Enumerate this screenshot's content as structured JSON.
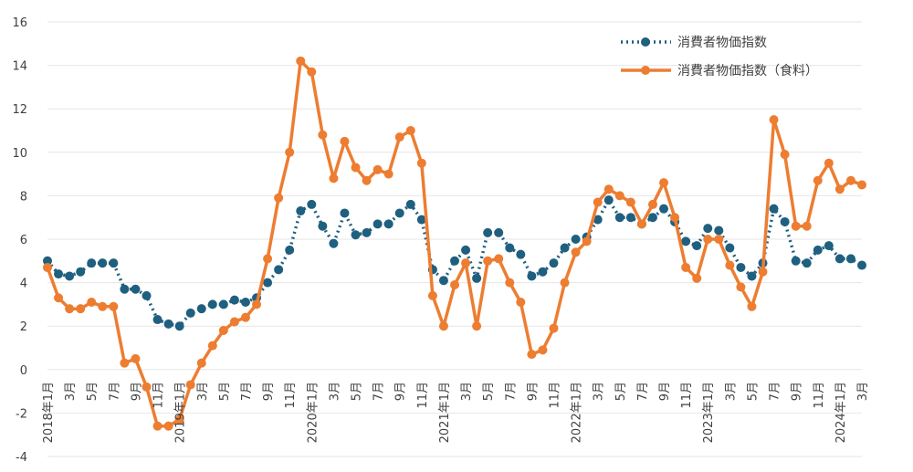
{
  "chart_data": {
    "type": "line",
    "title": "",
    "xlabel": "",
    "ylabel": "",
    "ylim": [
      -4,
      16
    ],
    "yticks": [
      "16",
      "14",
      "12",
      "10",
      "8",
      "6",
      "4",
      "2",
      "0",
      "-2",
      "-4"
    ],
    "grid": "horizontal",
    "legend_position": "top-right",
    "x": [
      "2018年1月",
      "2018年2月",
      "3月",
      "2018年4月",
      "5月",
      "2018年6月",
      "7月",
      "2018年8月",
      "9月",
      "2018年10月",
      "11月",
      "2018年12月",
      "2019年1月",
      "2019年2月",
      "3月",
      "2019年4月",
      "5月",
      "2019年6月",
      "7月",
      "2019年8月",
      "9月",
      "2019年10月",
      "11月",
      "2019年12月",
      "2020年1月",
      "2020年2月",
      "3月",
      "2020年4月",
      "5月",
      "2020年6月",
      "7月",
      "2020年8月",
      "9月",
      "2020年10月",
      "11月",
      "2020年12月",
      "2021年1月",
      "2021年2月",
      "3月",
      "2021年4月",
      "5月",
      "2021年6月",
      "7月",
      "2021年8月",
      "9月",
      "2021年10月",
      "11月",
      "2021年12月",
      "2022年1月",
      "2022年2月",
      "3月",
      "2022年4月",
      "5月",
      "2022年6月",
      "7月",
      "2022年8月",
      "9月",
      "2022年10月",
      "11月",
      "2022年12月",
      "2023年1月",
      "2023年2月",
      "3月",
      "2023年4月",
      "5月",
      "2023年6月",
      "7月",
      "2023年8月",
      "9月",
      "2023年10月",
      "11月",
      "2023年12月",
      "2024年1月",
      "2024年2月",
      "3月"
    ],
    "tick_labels": [
      {
        "i": 0,
        "label": "2018年1月"
      },
      {
        "i": 2,
        "label": "3月"
      },
      {
        "i": 4,
        "label": "5月"
      },
      {
        "i": 6,
        "label": "7月"
      },
      {
        "i": 8,
        "label": "9月"
      },
      {
        "i": 10,
        "label": "11月"
      },
      {
        "i": 12,
        "label": "2019年1月"
      },
      {
        "i": 14,
        "label": "3月"
      },
      {
        "i": 16,
        "label": "5月"
      },
      {
        "i": 18,
        "label": "7月"
      },
      {
        "i": 20,
        "label": "9月"
      },
      {
        "i": 22,
        "label": "11月"
      },
      {
        "i": 24,
        "label": "2020年1月"
      },
      {
        "i": 26,
        "label": "3月"
      },
      {
        "i": 28,
        "label": "5月"
      },
      {
        "i": 30,
        "label": "7月"
      },
      {
        "i": 32,
        "label": "9月"
      },
      {
        "i": 34,
        "label": "11月"
      },
      {
        "i": 36,
        "label": "2021年1月"
      },
      {
        "i": 38,
        "label": "3月"
      },
      {
        "i": 40,
        "label": "5月"
      },
      {
        "i": 42,
        "label": "7月"
      },
      {
        "i": 44,
        "label": "9月"
      },
      {
        "i": 46,
        "label": "11月"
      },
      {
        "i": 48,
        "label": "2022年1月"
      },
      {
        "i": 50,
        "label": "3月"
      },
      {
        "i": 52,
        "label": "5月"
      },
      {
        "i": 54,
        "label": "7月"
      },
      {
        "i": 56,
        "label": "9月"
      },
      {
        "i": 58,
        "label": "11月"
      },
      {
        "i": 60,
        "label": "2023年1月"
      },
      {
        "i": 62,
        "label": "3月"
      },
      {
        "i": 64,
        "label": "5月"
      },
      {
        "i": 66,
        "label": "7月"
      },
      {
        "i": 68,
        "label": "9月"
      },
      {
        "i": 70,
        "label": "11月"
      },
      {
        "i": 72,
        "label": "2024年1月"
      },
      {
        "i": 74,
        "label": "3月"
      }
    ],
    "series": [
      {
        "name": "消費者物価指数",
        "color": "#1f5f7f",
        "style": "dotted",
        "values": [
          5.0,
          4.4,
          4.3,
          4.5,
          4.9,
          4.9,
          4.9,
          3.7,
          3.7,
          3.4,
          2.3,
          2.1,
          2.0,
          2.6,
          2.8,
          3.0,
          3.0,
          3.2,
          3.1,
          3.3,
          4.0,
          4.6,
          5.5,
          7.3,
          7.6,
          6.6,
          5.8,
          7.2,
          6.2,
          6.3,
          6.7,
          6.7,
          7.2,
          7.6,
          6.9,
          4.6,
          4.1,
          5.0,
          5.5,
          4.2,
          6.3,
          6.3,
          5.6,
          5.3,
          4.3,
          4.5,
          4.9,
          5.6,
          6.0,
          6.1,
          6.9,
          7.8,
          7.0,
          7.0,
          6.7,
          7.0,
          7.4,
          6.8,
          5.9,
          5.7,
          6.5,
          6.4,
          5.6,
          4.7,
          4.3,
          4.9,
          7.4,
          6.8,
          5.0,
          4.9,
          5.5,
          5.7,
          5.1,
          5.1,
          4.8
        ]
      },
      {
        "name": "消費者物価指数（食料）",
        "color": "#ed7d31",
        "style": "solid",
        "values": [
          4.7,
          3.3,
          2.8,
          2.8,
          3.1,
          2.9,
          2.9,
          0.3,
          0.5,
          -0.8,
          -2.6,
          -2.6,
          -2.3,
          -0.7,
          0.3,
          1.1,
          1.8,
          2.2,
          2.4,
          3.0,
          5.1,
          7.9,
          10.0,
          14.2,
          13.7,
          10.8,
          8.8,
          10.5,
          9.3,
          8.7,
          9.2,
          9.0,
          10.7,
          11.0,
          9.5,
          3.4,
          2.0,
          3.9,
          4.9,
          2.0,
          5.0,
          5.1,
          4.0,
          3.1,
          0.7,
          0.9,
          1.9,
          4.0,
          5.4,
          5.9,
          7.7,
          8.3,
          8.0,
          7.7,
          6.7,
          7.6,
          8.6,
          7.0,
          4.7,
          4.2,
          6.0,
          6.0,
          4.8,
          3.8,
          2.9,
          4.5,
          11.5,
          9.9,
          6.6,
          6.6,
          8.7,
          9.5,
          8.3,
          8.7,
          8.5
        ]
      }
    ]
  }
}
